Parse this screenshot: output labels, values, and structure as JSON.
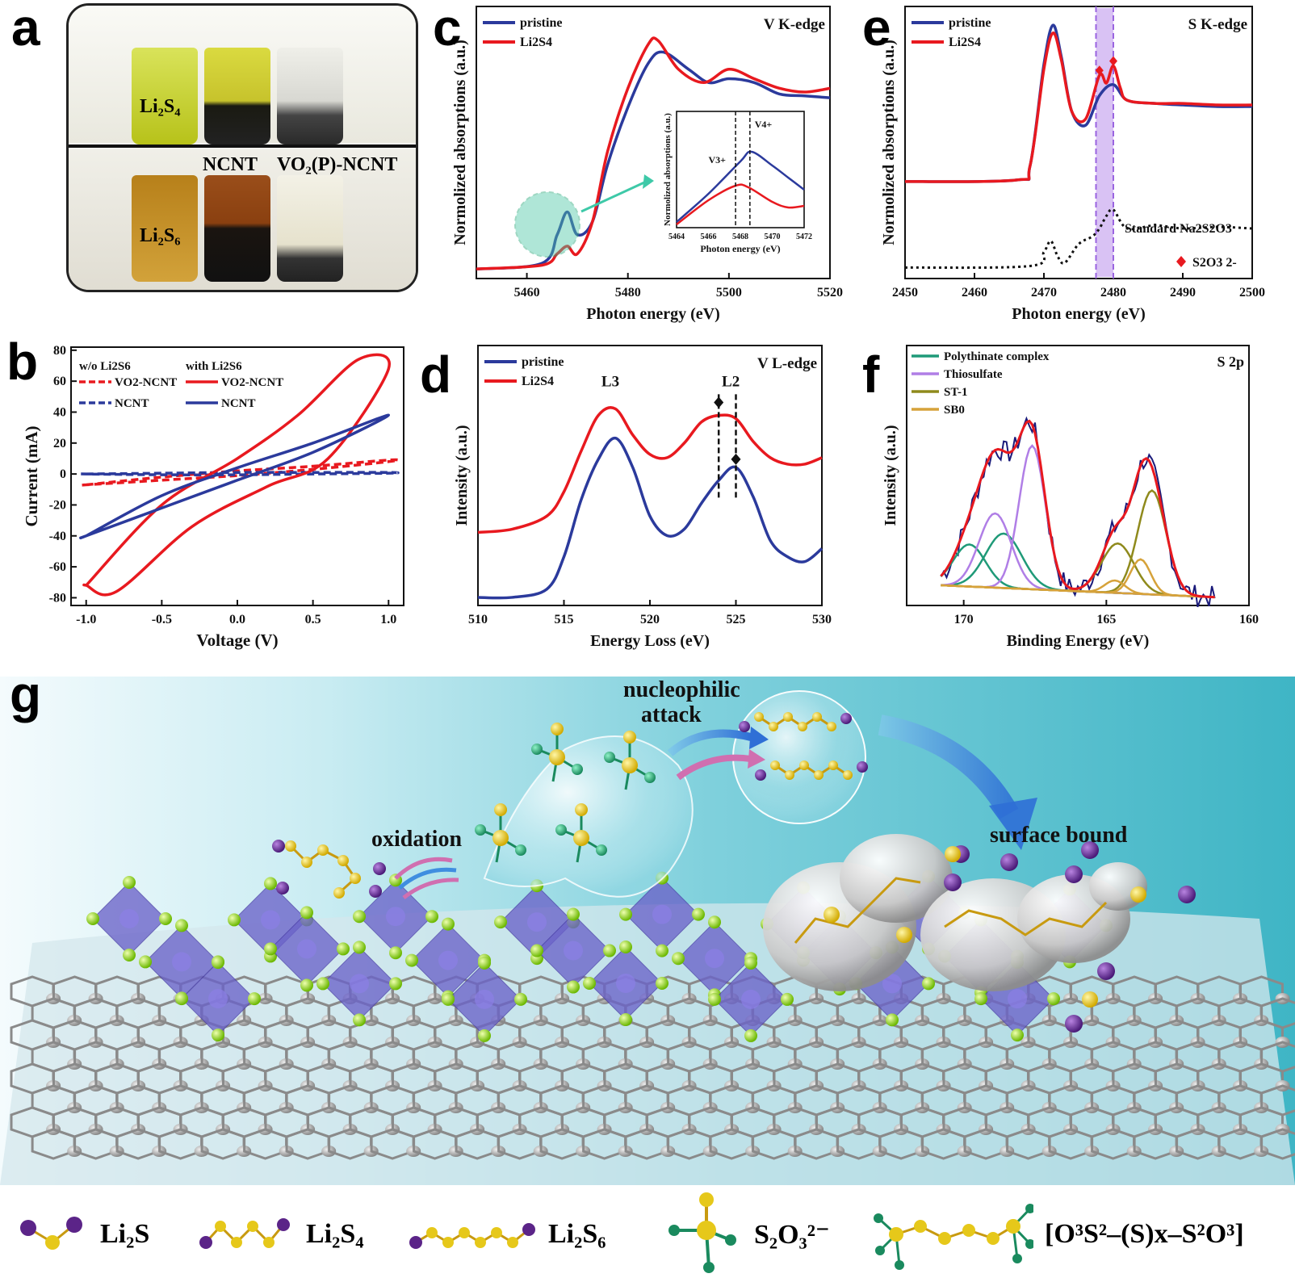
{
  "panels": {
    "a": {
      "label": "a",
      "vials_top": [
        "Li2S4"
      ],
      "vial_labels": {
        "top_left": "Li₂S₄",
        "bottom_left": "Li₂S₆",
        "ncnt": "NCNT",
        "vo2": "VO₂(P)-NCNT"
      }
    },
    "b": {
      "label": "b",
      "chart_data": {
        "type": "line",
        "title": "",
        "xlabel": "Voltage (V)",
        "ylabel": "Current (mA)",
        "xlim": [
          -1.1,
          1.1
        ],
        "ylim": [
          -85,
          82
        ],
        "xticks": [
          "-1.0",
          "-0.5",
          "0.0",
          "0.5",
          "1.0"
        ],
        "yticks": [
          "80",
          "60",
          "40",
          "20",
          "0",
          "-20",
          "-40",
          "-60",
          "-80"
        ],
        "legend_headers": [
          "w/o Li2S6",
          "with Li2S6"
        ],
        "series": [
          {
            "name": "VO2-NCNT (w/o Li2S6)",
            "style": "dashed",
            "color": "#e8191f",
            "x": [
              -1.0,
              -0.5,
              0.0,
              0.5,
              1.0,
              1.0,
              0.5,
              0.0,
              -0.5,
              -1.0
            ],
            "y": [
              -7,
              -2,
              2,
              5,
              9,
              8,
              3,
              -1,
              -4,
              -7
            ]
          },
          {
            "name": "NCNT (w/o Li2S6)",
            "style": "dashed",
            "color": "#2b3a9c",
            "x": [
              -1.0,
              -0.5,
              0.0,
              0.5,
              1.0,
              1.0,
              0.5,
              0.0,
              -0.5,
              -1.0
            ],
            "y": [
              0,
              0.5,
              1,
              1,
              1,
              0.5,
              0,
              -0.5,
              -0.5,
              0
            ]
          },
          {
            "name": "VO2-NCNT (with Li2S6)",
            "style": "solid",
            "color": "#e8191f",
            "x": [
              -1.0,
              -0.5,
              0.0,
              0.4,
              0.8,
              1.0,
              0.6,
              0.2,
              -0.3,
              -0.8,
              -1.0
            ],
            "y": [
              -72,
              -20,
              10,
              38,
              74,
              68,
              10,
              -8,
              -34,
              -76,
              -72
            ]
          },
          {
            "name": "NCNT (with Li2S6)",
            "style": "solid",
            "color": "#2b3a9c",
            "x": [
              -1.0,
              -0.5,
              0.0,
              0.5,
              1.0,
              0.5,
              0.0,
              -0.5,
              -1.0
            ],
            "y": [
              -40,
              -14,
              4,
              20,
              38,
              14,
              -4,
              -22,
              -40
            ]
          }
        ],
        "legend": [
          {
            "text": "VO2-NCNT",
            "sub": "",
            "style": "dashed",
            "color": "#e8191f"
          },
          {
            "text": "NCNT",
            "style": "dashed",
            "color": "#2b3a9c"
          },
          {
            "text": "VO2-NCNT",
            "style": "solid",
            "color": "#e8191f"
          },
          {
            "text": "NCNT",
            "style": "solid",
            "color": "#2b3a9c"
          }
        ]
      }
    },
    "c": {
      "label": "c",
      "chart_data": {
        "type": "line",
        "title": "V K-edge",
        "xlabel": "Photon energy (eV)",
        "ylabel": "Normolized absorptions (a.u.)",
        "xlim": [
          5450,
          5520
        ],
        "xticks": [
          "5460",
          "5480",
          "5500",
          "5520"
        ],
        "series": [
          {
            "name": "pristine",
            "color": "#2b3a9c",
            "x": [
              5450,
              5463,
              5466,
              5468,
              5470,
              5473,
              5476,
              5480,
              5484,
              5487,
              5492,
              5496,
              5500,
              5505,
              5510,
              5515,
              5520
            ],
            "y": [
              0.0,
              0.03,
              0.18,
              0.3,
              0.18,
              0.25,
              0.55,
              0.85,
              1.08,
              1.14,
              1.05,
              0.98,
              1.0,
              0.98,
              0.92,
              0.91,
              0.9
            ]
          },
          {
            "name": "Li2S4",
            "color": "#e8191f",
            "x": [
              5450,
              5463,
              5466,
              5468,
              5470,
              5473,
              5476,
              5480,
              5484,
              5486,
              5490,
              5495,
              5500,
              5505,
              5510,
              5515,
              5520
            ],
            "y": [
              0.0,
              0.02,
              0.08,
              0.12,
              0.08,
              0.25,
              0.62,
              0.95,
              1.18,
              1.2,
              1.05,
              0.98,
              1.05,
              1.0,
              0.95,
              0.93,
              0.95
            ]
          }
        ],
        "inset": {
          "xlabel": "Photon energy (eV)",
          "ylabel": "Normolized absorptions (a.u.)",
          "xticks": [
            "5464",
            "5466",
            "5468",
            "5470",
            "5472"
          ],
          "annotations": [
            "V3+",
            "V4+"
          ]
        }
      }
    },
    "d": {
      "label": "d",
      "chart_data": {
        "type": "line",
        "title": "V L-edge",
        "xlabel": "Energy Loss (eV)",
        "ylabel": "Intensity (a.u.)",
        "xlim": [
          510,
          530
        ],
        "xticks": [
          "510",
          "515",
          "520",
          "525",
          "530"
        ],
        "annotations": [
          "L3",
          "L2"
        ],
        "series": [
          {
            "name": "pristine",
            "color": "#2b3a9c",
            "x": [
              510,
              512,
              514,
              515,
              516,
              517,
              518,
              519,
              520,
              521,
              522,
              523,
              524,
              525,
              526,
              527,
              528,
              529,
              530
            ],
            "y": [
              0.0,
              0.0,
              0.05,
              0.25,
              0.6,
              0.85,
              0.98,
              0.8,
              0.5,
              0.38,
              0.42,
              0.58,
              0.72,
              0.8,
              0.62,
              0.35,
              0.25,
              0.22,
              0.3
            ]
          },
          {
            "name": "Li2S4",
            "color": "#e8191f",
            "x": [
              510,
              512,
              514,
              515,
              516,
              517,
              518,
              519,
              520,
              521,
              522,
              523,
              524,
              525,
              526,
              527,
              528,
              529,
              530
            ],
            "y": [
              0.4,
              0.42,
              0.5,
              0.65,
              0.9,
              1.12,
              1.16,
              1.0,
              0.88,
              0.86,
              0.95,
              1.08,
              1.12,
              1.1,
              0.96,
              0.86,
              0.82,
              0.82,
              0.86
            ]
          }
        ]
      }
    },
    "e": {
      "label": "e",
      "chart_data": {
        "type": "line",
        "title": "S K-edge",
        "xlabel": "Photon energy (eV)",
        "ylabel": "Normolized absorptions (a.u.)",
        "xlim": [
          2450,
          2500
        ],
        "xticks": [
          "2450",
          "2460",
          "2470",
          "2480",
          "2490",
          "2500"
        ],
        "highlight_band": [
          2477.5,
          2480
        ],
        "series": [
          {
            "name": "pristine",
            "color": "#2b3a9c",
            "x": [
              2450,
              2466,
              2468,
              2470,
              2471.3,
              2472.5,
              2474,
              2476,
              2478,
              2480,
              2482,
              2486,
              2490,
              2495,
              2500
            ],
            "y": [
              0.0,
              0.01,
              0.1,
              0.75,
              1.0,
              0.8,
              0.45,
              0.36,
              0.55,
              0.62,
              0.52,
              0.5,
              0.49,
              0.48,
              0.48
            ]
          },
          {
            "name": "Li2S4",
            "color": "#e8191f",
            "x": [
              2450,
              2466,
              2468,
              2470,
              2471.3,
              2472.5,
              2474,
              2476,
              2478,
              2479,
              2480,
              2481,
              2482,
              2486,
              2490,
              2495,
              2500
            ],
            "y": [
              0.0,
              0.01,
              0.1,
              0.72,
              0.95,
              0.78,
              0.45,
              0.4,
              0.68,
              0.63,
              0.74,
              0.6,
              0.52,
              0.5,
              0.5,
              0.49,
              0.49
            ]
          },
          {
            "name": "Standard Na2S2O3",
            "color": "#111111",
            "style": "dotted",
            "x": [
              2450,
              2468,
              2470,
              2471,
              2472,
              2473,
              2475,
              2477,
              2478,
              2479,
              2480,
              2482,
              2486,
              2490,
              2495,
              2500
            ],
            "y": [
              -0.55,
              -0.54,
              -0.45,
              -0.38,
              -0.48,
              -0.52,
              -0.4,
              -0.35,
              -0.3,
              -0.22,
              -0.18,
              -0.3,
              -0.28,
              -0.3,
              -0.29,
              -0.3
            ]
          }
        ],
        "annotations": [
          "Standard Na2S2O3",
          "S2O3 2-"
        ]
      }
    },
    "f": {
      "label": "f",
      "chart_data": {
        "type": "line",
        "title": "S 2p",
        "xlabel": "Binding Energy (eV)",
        "ylabel": "Intensity (a.u.)",
        "xlim": [
          172,
          160
        ],
        "xticks": [
          "170",
          "165",
          "160"
        ],
        "legend": [
          {
            "name": "Polythinate complex",
            "color": "#1f9a78"
          },
          {
            "name": "Thiosulfate",
            "color": "#b07ee6"
          },
          {
            "name": "ST-1",
            "color": "#8f8a1c"
          },
          {
            "name": "SB0",
            "color": "#d6a23a"
          }
        ]
      }
    },
    "g": {
      "label": "g",
      "annotations": {
        "nucleophilic": "nucleophilic",
        "attack": "attack",
        "oxidation": "oxidation",
        "surface_bound": "surface bound"
      }
    }
  },
  "legend_bottom": [
    {
      "name": "li2s",
      "text": "Li₂S"
    },
    {
      "name": "li2s4",
      "text": "Li₂S₄"
    },
    {
      "name": "li2s6",
      "text": "Li₂S₆"
    },
    {
      "name": "s2o3",
      "text": "S₂O₃²⁻"
    },
    {
      "name": "polythionate",
      "text": "[O³S²–(S)x–S²O³]"
    }
  ],
  "colors": {
    "red": "#e8191f",
    "blue": "#2b3a9c",
    "li": "#6a2b96",
    "s": "#f0d020",
    "o": "#2aa77a",
    "lavender": "#c9a8f0",
    "teal_bg": "#3fb5c5"
  }
}
